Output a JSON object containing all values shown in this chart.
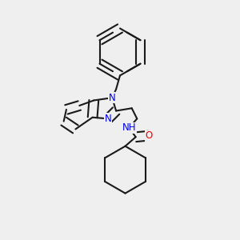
{
  "background_color": "#efefef",
  "line_color": "#1a1a1a",
  "N_color": "#0000ee",
  "O_color": "#ee0000",
  "line_width": 1.5,
  "dbo": 0.018,
  "font_size_atom": 8.5,
  "figsize": [
    3.0,
    3.0
  ],
  "dpi": 100,
  "xlim": [
    0.05,
    0.95
  ],
  "ylim": [
    0.05,
    0.95
  ]
}
